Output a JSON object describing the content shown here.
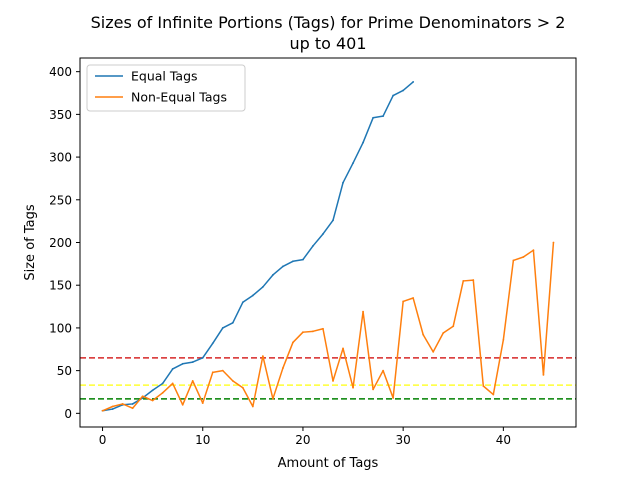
{
  "chart_data": {
    "type": "line",
    "title_line1": "Sizes of Infinite Portions (Tags) for Prime Denominators > 2",
    "title_line2": "up to 401",
    "xlabel": "Amount of Tags",
    "ylabel": "Size of Tags",
    "xlim": [
      -2.25,
      47.25
    ],
    "ylim": [
      -16,
      416
    ],
    "xticks": [
      0,
      10,
      20,
      30,
      40
    ],
    "yticks": [
      0,
      50,
      100,
      150,
      200,
      250,
      300,
      350,
      400
    ],
    "legend_position": "upper left",
    "grid": false,
    "series": [
      {
        "name": "Equal Tags",
        "color": "#1f77b4",
        "x": [
          0,
          1,
          2,
          3,
          4,
          5,
          6,
          7,
          8,
          9,
          10,
          11,
          12,
          13,
          14,
          15,
          16,
          17,
          18,
          19,
          20,
          21,
          22,
          23,
          24,
          25,
          26,
          27,
          28,
          29,
          30,
          31
        ],
        "y": [
          3,
          5,
          10,
          11,
          18,
          27,
          35,
          52,
          58,
          60,
          65,
          82,
          100,
          106,
          130,
          138,
          148,
          162,
          172,
          178,
          180,
          196,
          210,
          226,
          270,
          293,
          317,
          346,
          348,
          372,
          378,
          388
        ]
      },
      {
        "name": "Non-Equal Tags",
        "color": "#ff7f0e",
        "x": [
          0,
          1,
          2,
          3,
          4,
          5,
          6,
          7,
          8,
          9,
          10,
          11,
          12,
          13,
          14,
          15,
          16,
          17,
          18,
          19,
          20,
          21,
          22,
          23,
          24,
          25,
          26,
          27,
          28,
          29,
          30,
          31,
          32,
          33,
          34,
          35,
          36,
          37,
          38,
          39,
          40,
          41,
          42,
          43,
          44,
          45
        ],
        "y": [
          3,
          8,
          11,
          6,
          20,
          15,
          24,
          35,
          10,
          38,
          12,
          48,
          50,
          38,
          30,
          8,
          67,
          17,
          53,
          83,
          95,
          96,
          99,
          38,
          76,
          30,
          119,
          28,
          50,
          18,
          131,
          135,
          92,
          72,
          94,
          102,
          155,
          156,
          32,
          22,
          86,
          179,
          183,
          191,
          45,
          200
        ]
      }
    ],
    "reference_lines": [
      {
        "y": 65,
        "color": "#d62728"
      },
      {
        "y": 33,
        "color": "#ffff33"
      },
      {
        "y": 17,
        "color": "#008000"
      }
    ]
  }
}
